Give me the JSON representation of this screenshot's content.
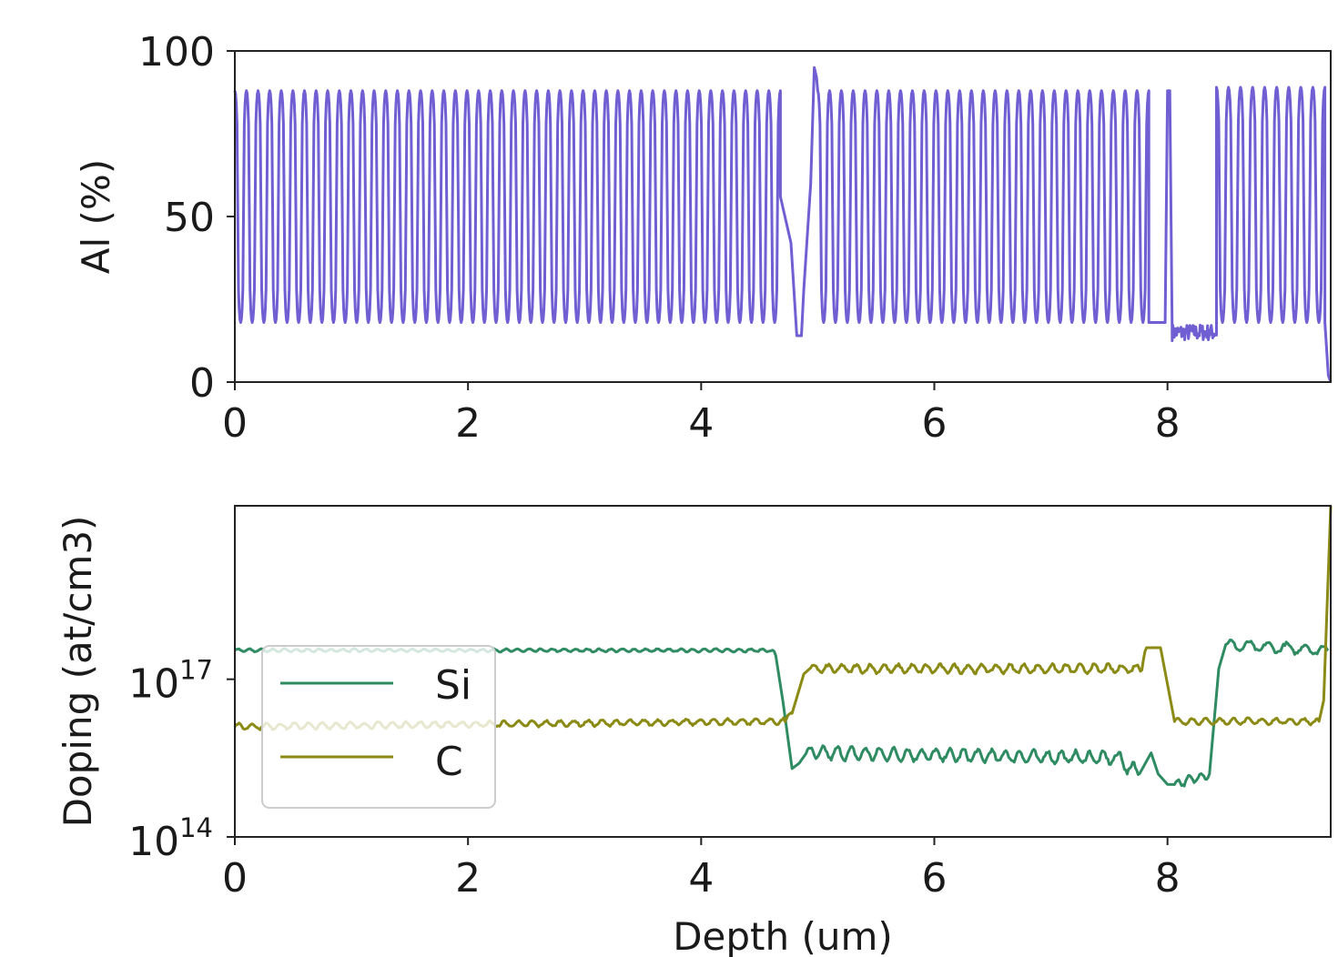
{
  "chart_data": [
    {
      "type": "line",
      "ylabel": "Al (%)",
      "xlim": [
        0,
        9.4
      ],
      "ylim": [
        0,
        100
      ],
      "xticks": [
        "0",
        "2",
        "4",
        "6",
        "8"
      ],
      "yticks": [
        "0",
        "50",
        "100"
      ],
      "grid": false,
      "color": "#6f5fd3",
      "segments": [
        {
          "type": "superlattice",
          "x_start": 0.0,
          "x_end": 4.68,
          "periods": 47,
          "high": 88,
          "low": 18
        },
        {
          "type": "grade",
          "points": [
            [
              4.68,
              56
            ],
            [
              4.77,
              42
            ],
            [
              4.82,
              14
            ],
            [
              4.86,
              14
            ],
            [
              4.88,
              28
            ],
            [
              4.94,
              60
            ],
            [
              4.97,
              95
            ],
            [
              4.99,
              92
            ]
          ]
        },
        {
          "type": "superlattice",
          "x_start": 5.0,
          "x_end": 7.84,
          "periods": 28,
          "high": 88,
          "low": 18
        },
        {
          "type": "flat",
          "points": [
            [
              7.84,
              18
            ],
            [
              7.98,
              18
            ]
          ]
        },
        {
          "type": "peak",
          "points": [
            [
              7.98,
              18
            ],
            [
              8.0,
              88
            ],
            [
              8.02,
              88
            ],
            [
              8.04,
              16
            ]
          ]
        },
        {
          "type": "noisy_flat",
          "x_start": 8.04,
          "x_end": 8.42,
          "value": 15
        },
        {
          "type": "superlattice",
          "x_start": 8.42,
          "x_end": 9.35,
          "periods": 9,
          "high": 89,
          "low": 18
        },
        {
          "type": "drop",
          "points": [
            [
              9.35,
              18
            ],
            [
              9.38,
              2
            ],
            [
              9.4,
              0
            ]
          ]
        }
      ]
    },
    {
      "type": "line",
      "xlabel": "Depth (um)",
      "ylabel": "Doping (at/cm3)",
      "xlim": [
        0,
        9.4
      ],
      "ylog_range": [
        14,
        20.3
      ],
      "xticks": [
        "0",
        "2",
        "4",
        "6",
        "8"
      ],
      "yticks": [
        {
          "base": "10",
          "exp": "14"
        },
        {
          "base": "10",
          "exp": "17"
        }
      ],
      "grid": false,
      "legend": {
        "position": "lower-left",
        "entries": [
          "Si",
          "C"
        ]
      },
      "series": [
        {
          "name": "Si",
          "color": "#2e8b62",
          "log10_profile": [
            [
              0.0,
              17.55,
              0.035,
              0.1
            ],
            [
              4.6,
              17.55,
              0.05,
              0.1
            ],
            [
              4.64,
              17.45,
              0,
              0
            ],
            [
              4.7,
              16.6,
              0,
              0
            ],
            [
              4.78,
              15.3,
              0,
              0
            ],
            [
              4.84,
              15.4,
              0,
              0
            ],
            [
              4.9,
              15.6,
              0.15,
              0.12
            ],
            [
              7.56,
              15.5,
              0.2,
              0.12
            ],
            [
              7.76,
              15.2,
              0,
              0
            ],
            [
              7.86,
              15.6,
              0,
              0
            ],
            [
              7.92,
              15.2,
              0,
              0
            ],
            [
              8.0,
              15.0,
              0,
              0
            ],
            [
              8.06,
              15.0,
              0.1,
              0.1
            ],
            [
              8.36,
              15.2,
              0,
              0
            ],
            [
              8.44,
              17.2,
              0,
              0
            ],
            [
              8.5,
              17.65,
              0.12,
              0.16
            ],
            [
              9.38,
              17.55,
              0,
              0
            ]
          ]
        },
        {
          "name": "C",
          "color": "#8a8a14",
          "log10_profile": [
            [
              0.0,
              16.1,
              0.07,
              0.12
            ],
            [
              4.72,
              16.2,
              0.06,
              0.12
            ],
            [
              4.78,
              16.35,
              0,
              0
            ],
            [
              4.88,
              17.1,
              0,
              0
            ],
            [
              4.94,
              17.2,
              0.1,
              0.12
            ],
            [
              7.78,
              17.2,
              0.1,
              0.12
            ],
            [
              7.82,
              17.6,
              0,
              0
            ],
            [
              7.94,
              17.6,
              0,
              0
            ],
            [
              8.0,
              16.9,
              0,
              0
            ],
            [
              8.06,
              16.2,
              0.07,
              0.12
            ],
            [
              9.3,
              16.2,
              0,
              0
            ],
            [
              9.34,
              16.6,
              0,
              0
            ],
            [
              9.4,
              20.3,
              0,
              0
            ]
          ]
        }
      ]
    }
  ]
}
